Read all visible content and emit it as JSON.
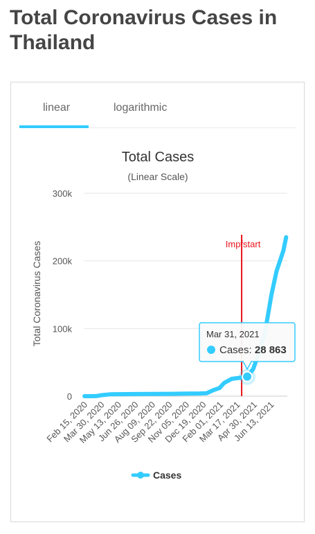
{
  "page": {
    "title": "Total Coronavirus Cases in Thailand"
  },
  "tabs": [
    {
      "label": "linear",
      "active": true
    },
    {
      "label": "logarithmic",
      "active": false
    }
  ],
  "colors": {
    "series": "#33ccff",
    "annotation": "#e8131a",
    "grid": "#e6e6e6"
  },
  "chart_data": {
    "type": "line",
    "title": "Total Cases",
    "subtitle": "(Linear Scale)",
    "ylabel": "Total Coronavirus Cases",
    "xlabel": "",
    "ylim": [
      0,
      300000
    ],
    "y_ticks": [
      0,
      100000,
      200000,
      300000
    ],
    "y_tick_labels": [
      "0",
      "100k",
      "200k",
      "300k"
    ],
    "x_tick_labels": [
      "Feb 15, 2020",
      "Mar 30, 2020",
      "May 13, 2020",
      "Jun 26, 2020",
      "Aug 09, 2020",
      "Sep 22, 2020",
      "Nov 05, 2020",
      "Dec 19, 2020",
      "Feb 01, 2021",
      "Mar 17, 2021",
      "Apr 30, 2021",
      "Jun 13, 2021"
    ],
    "x_range": [
      "2020-02-15",
      "2021-07-10"
    ],
    "grid": true,
    "legend_position": "bottom",
    "series": [
      {
        "name": "Cases",
        "points": [
          [
            "2020-02-15",
            35
          ],
          [
            "2020-03-15",
            114
          ],
          [
            "2020-03-30",
            1524
          ],
          [
            "2020-04-20",
            2792
          ],
          [
            "2020-05-13",
            3017
          ],
          [
            "2020-06-26",
            3158
          ],
          [
            "2020-08-09",
            3330
          ],
          [
            "2020-09-22",
            3519
          ],
          [
            "2020-11-05",
            3800
          ],
          [
            "2020-12-01",
            4000
          ],
          [
            "2020-12-19",
            4400
          ],
          [
            "2020-12-25",
            6000
          ],
          [
            "2021-01-05",
            9000
          ],
          [
            "2021-01-20",
            12000
          ],
          [
            "2021-02-01",
            19600
          ],
          [
            "2021-02-20",
            25600
          ],
          [
            "2021-03-10",
            27000
          ],
          [
            "2021-03-31",
            28863
          ],
          [
            "2021-04-15",
            40000
          ],
          [
            "2021-04-30",
            65000
          ],
          [
            "2021-05-15",
            95000
          ],
          [
            "2021-05-31",
            150000
          ],
          [
            "2021-06-13",
            185000
          ],
          [
            "2021-06-30",
            215000
          ],
          [
            "2021-07-07",
            235000
          ]
        ]
      }
    ],
    "annotations": [
      {
        "label": "Impfstart",
        "date": "2021-03-17"
      }
    ],
    "tooltip": {
      "date": "Mar 31, 2021",
      "series": "Cases",
      "value_label": "28 863",
      "x": "2021-03-31",
      "y": 28863
    }
  }
}
